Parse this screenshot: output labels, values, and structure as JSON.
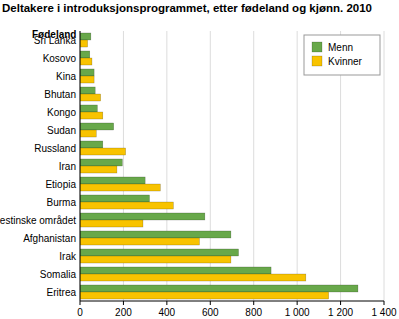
{
  "chart_data": {
    "type": "bar",
    "orientation": "horizontal",
    "title": "Deltakere i introduksjonsprogrammet, etter fødeland og kjønn. 2010",
    "y_label": "Fødeland",
    "categories": [
      "Sri Lanka",
      "Kosovo",
      "Kina",
      "Bhutan",
      "Kongo",
      "Sudan",
      "Russland",
      "Iran",
      "Etiopia",
      "Burma",
      "Det palestinske området",
      "Afghanistan",
      "Irak",
      "Somalia",
      "Eritrea"
    ],
    "series": [
      {
        "name": "Menn",
        "color": "#68a84a",
        "values": [
          50,
          45,
          65,
          70,
          80,
          155,
          105,
          195,
          300,
          320,
          575,
          695,
          730,
          880,
          1280
        ]
      },
      {
        "name": "Kvinner",
        "color": "#f8c300",
        "values": [
          35,
          55,
          65,
          95,
          105,
          75,
          210,
          170,
          370,
          430,
          290,
          550,
          695,
          1040,
          1145
        ]
      }
    ],
    "xlim": [
      0,
      1400
    ],
    "xticks": [
      0,
      200,
      400,
      600,
      800,
      {
        "value": 1000,
        "label": "1 000"
      },
      {
        "value": 1200,
        "label": "1 200"
      },
      {
        "value": 1400,
        "label": "1 400"
      }
    ],
    "grid": true,
    "legend": "top-right"
  }
}
